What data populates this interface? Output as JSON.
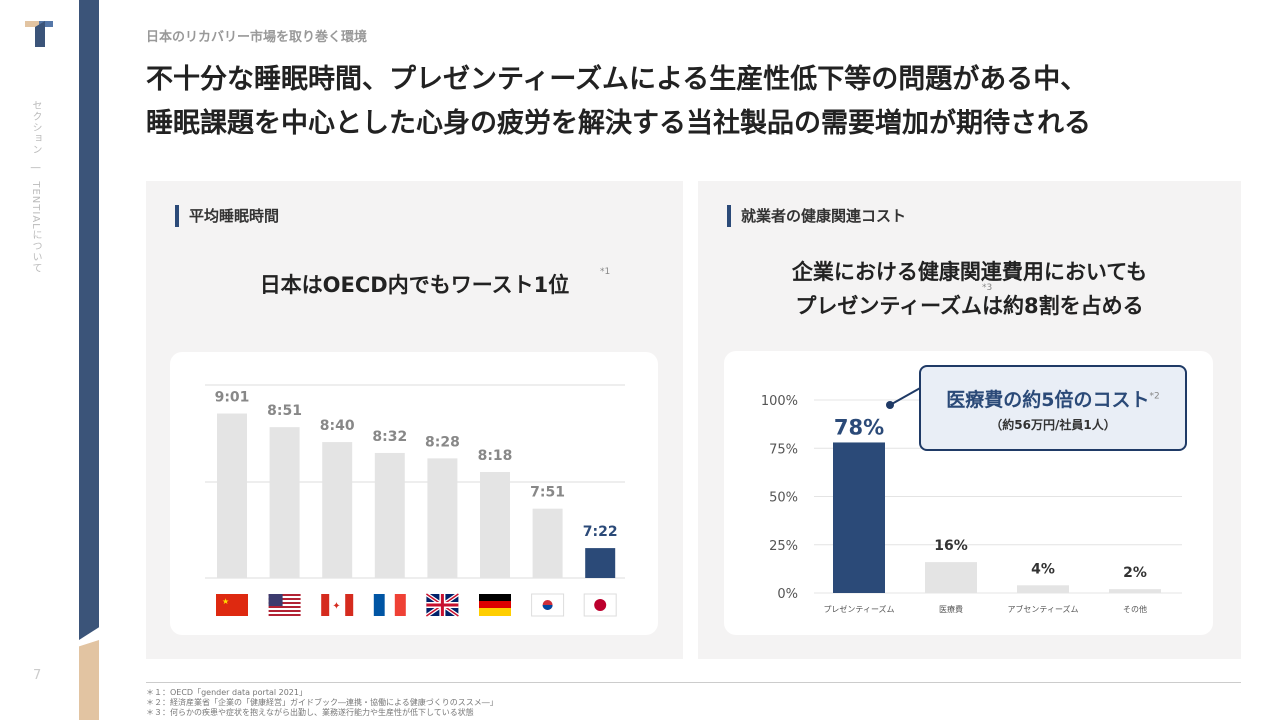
{
  "sidebar": {
    "logo": "T",
    "section_label": "セクション　|　TENTIALについて",
    "page_number": "7"
  },
  "header": {
    "breadcrumb": "日本のリカバリー市場を取り巻く環境",
    "title_line1": "不十分な睡眠時間、プレゼンティーズムによる生産性低下等の問題がある中、",
    "title_line2": "睡眠課題を中心とした心身の疲労を解決する当社製品の需要増加が期待される"
  },
  "left_panel": {
    "heading": "平均睡眠時間",
    "headline": "日本はOECD内でもワースト1位",
    "note": "*1"
  },
  "right_panel": {
    "heading": "就業者の健康関連コスト",
    "headline_line1": "企業における健康関連費用においても",
    "headline_line2": "プレゼンティーズムは約8割を占める",
    "note": "*3",
    "callout": {
      "title": "医療費の約5倍のコスト",
      "note": "*2",
      "sub": "（約56万円/社員1人）"
    }
  },
  "colors": {
    "primary": "#2b4a78",
    "bar_gray": "#e4e4e4",
    "accent": "#e2c4a2"
  },
  "chart_data": [
    {
      "type": "bar",
      "title": "平均睡眠時間",
      "categories": [
        "China",
        "USA",
        "Canada",
        "France",
        "UK",
        "Germany",
        "Korea",
        "Japan"
      ],
      "flag_icons": [
        "china-flag",
        "usa-flag",
        "canada-flag",
        "france-flag",
        "uk-flag",
        "germany-flag",
        "korea-flag",
        "japan-flag"
      ],
      "labels": [
        "9:01",
        "8:51",
        "8:40",
        "8:32",
        "8:28",
        "8:18",
        "7:51",
        "7:22"
      ],
      "values": [
        541,
        531,
        520,
        512,
        508,
        498,
        471,
        442
      ],
      "ylim": [
        420,
        562
      ],
      "unit": "minutes",
      "highlight_index": 7
    },
    {
      "type": "bar",
      "title": "就業者の健康関連コスト",
      "categories": [
        "プレゼンティーズム",
        "医療費",
        "アブセンティーズム",
        "その他"
      ],
      "values": [
        78,
        16,
        4,
        2
      ],
      "labels": [
        "78%",
        "16%",
        "4%",
        "2%"
      ],
      "ylim": [
        0,
        100
      ],
      "yticks": [
        "0%",
        "25%",
        "50%",
        "75%",
        "100%"
      ],
      "highlight_index": 0
    }
  ],
  "footnotes": [
    "＊１：OECD「gender data portal 2021」",
    "＊２：経済産業省「企業の「健康経営」ガイドブック―連携・協働による健康づくりのススメ―」",
    "＊３：何らかの疾患や症状を抱えながら出勤し、業務遂行能力や生産性が低下している状態"
  ]
}
